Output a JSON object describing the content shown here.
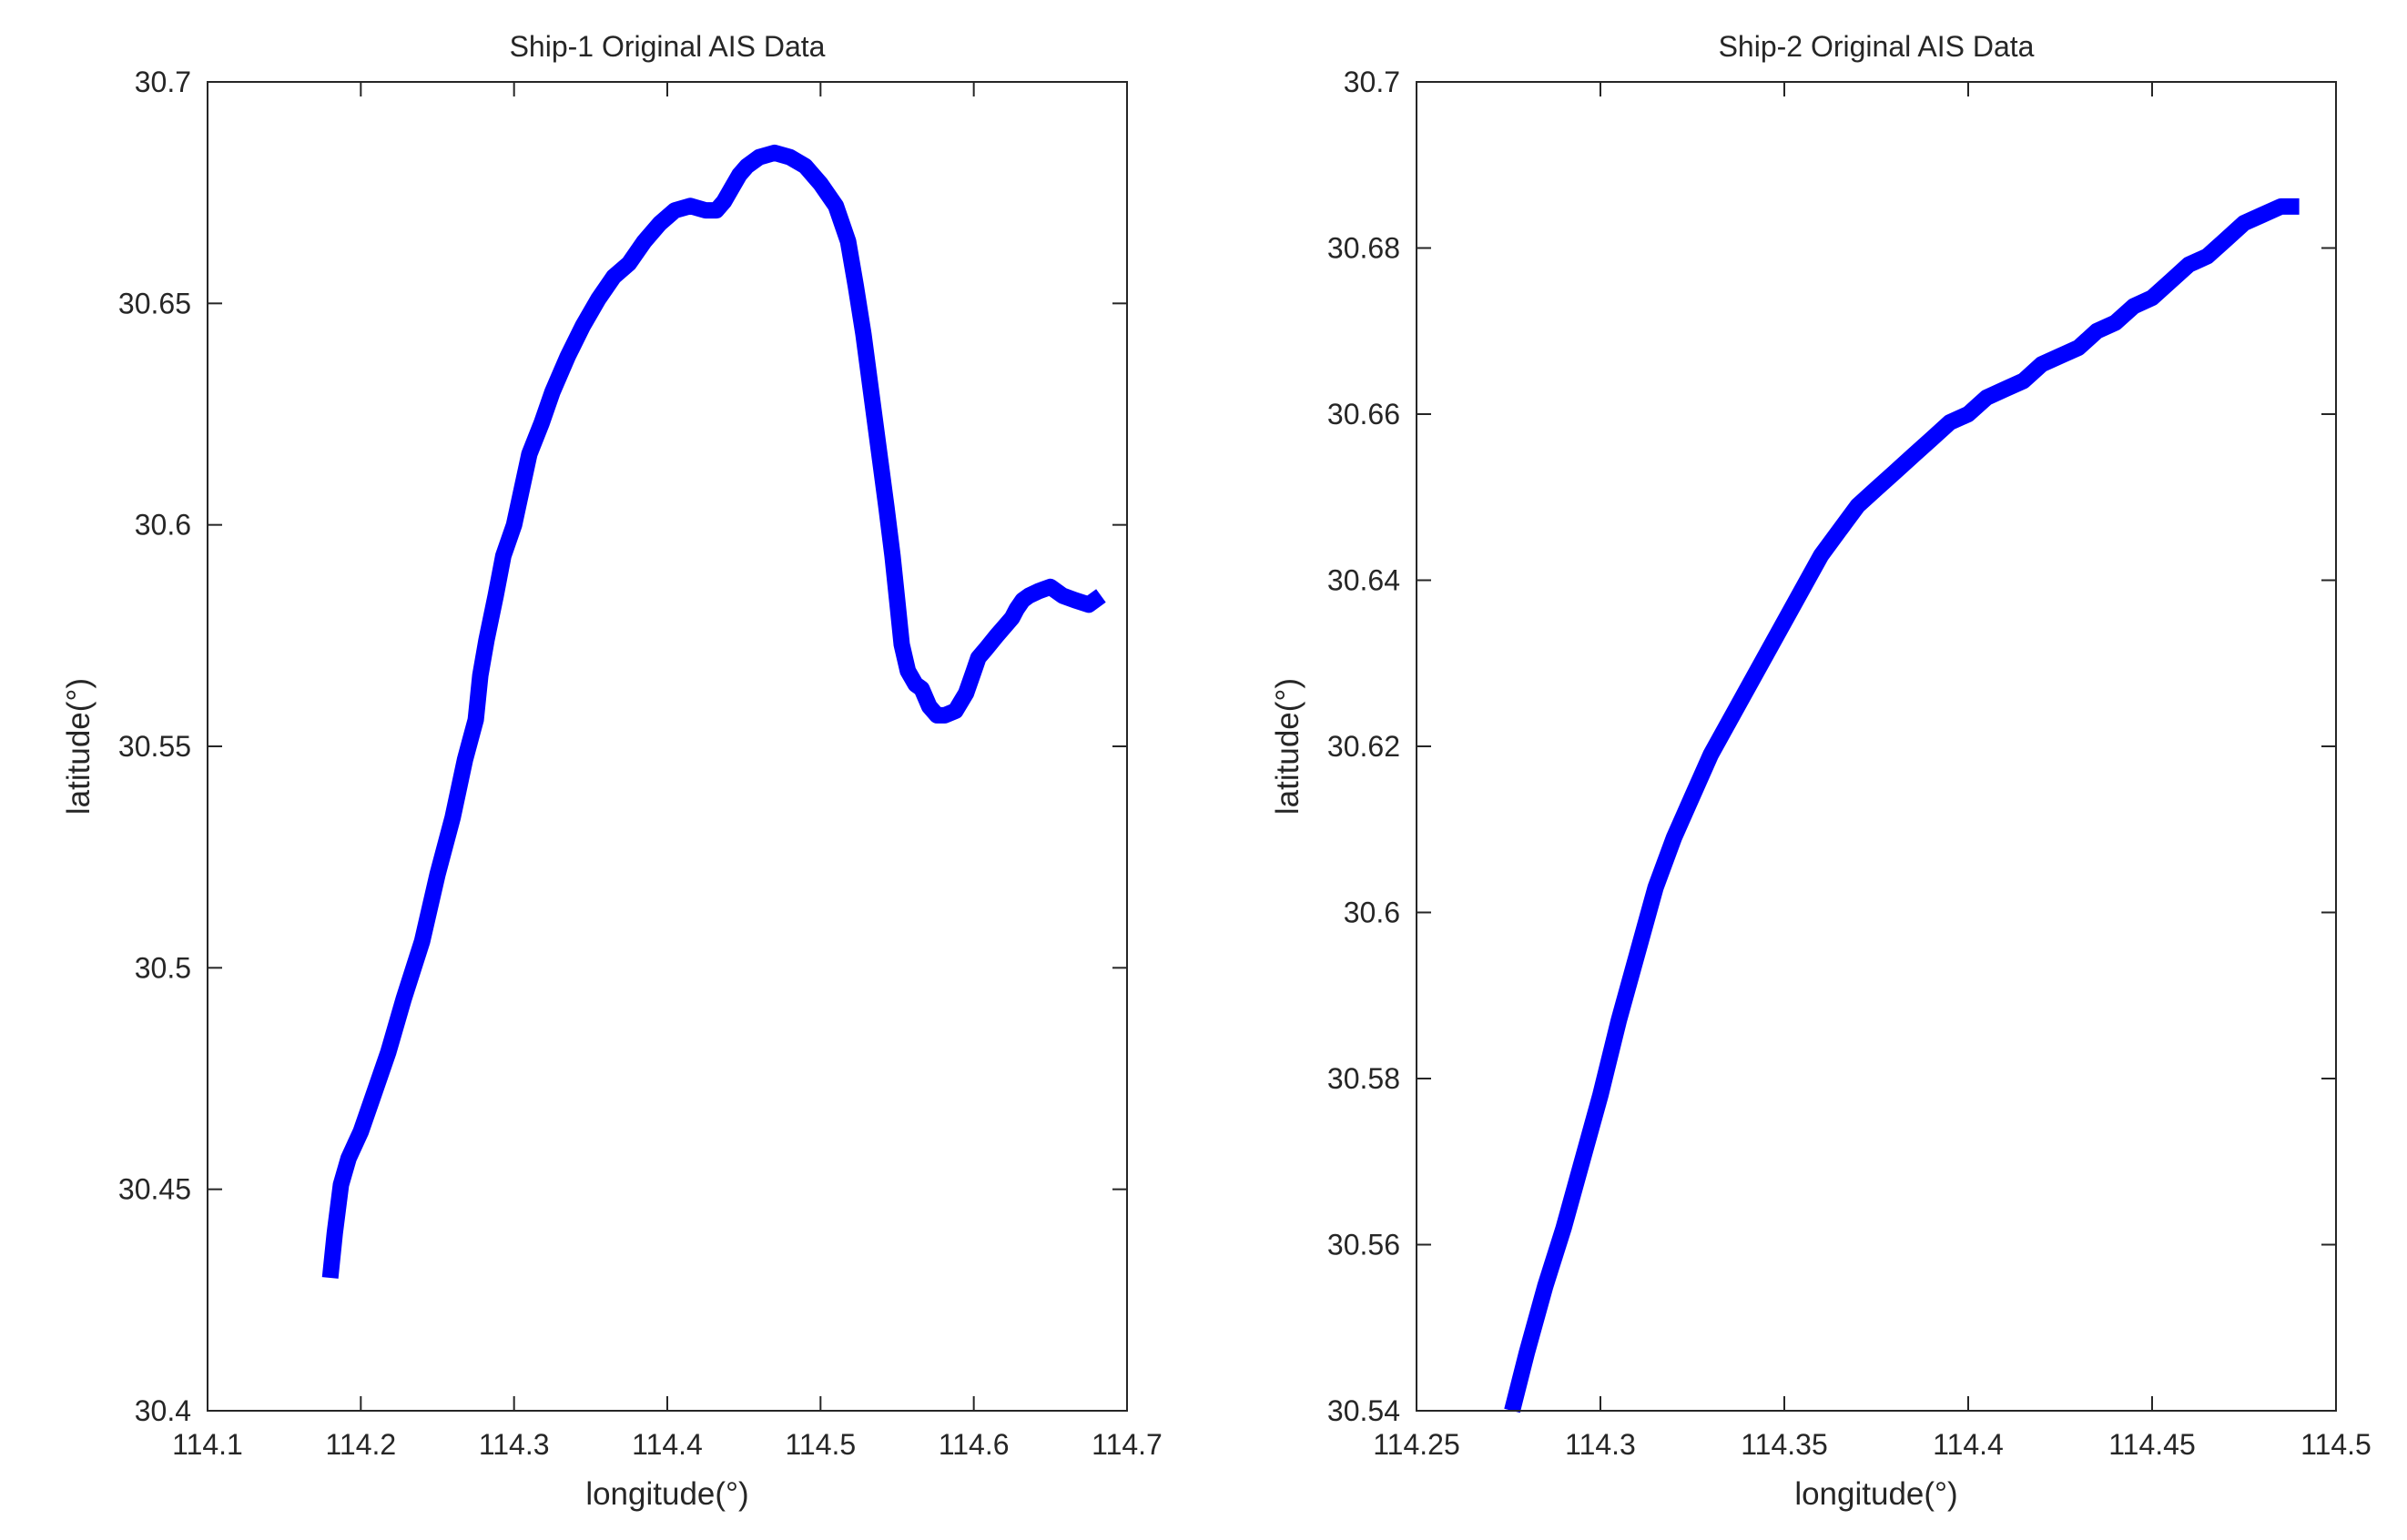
{
  "chart_data": [
    {
      "type": "line",
      "title": "Ship-1 Original AIS Data",
      "xlabel": "longitude(°)",
      "ylabel": "latitude(°)",
      "xlim": [
        114.1,
        114.7
      ],
      "ylim": [
        30.4,
        30.7
      ],
      "xticks": [
        "114.1",
        "114.2",
        "114.3",
        "114.4",
        "114.5",
        "114.6",
        "114.7"
      ],
      "yticks": [
        "30.4",
        "30.45",
        "30.5",
        "30.55",
        "30.6",
        "30.65",
        "30.7"
      ],
      "grid": false,
      "series_color": "#0000FF",
      "x": [
        114.18,
        114.183,
        114.187,
        114.192,
        114.2,
        114.208,
        114.218,
        114.228,
        114.24,
        114.25,
        114.26,
        114.268,
        114.275,
        114.278,
        114.282,
        114.288,
        114.293,
        114.3,
        114.305,
        114.31,
        114.318,
        114.325,
        114.335,
        114.345,
        114.355,
        114.365,
        114.375,
        114.385,
        114.395,
        114.405,
        114.415,
        114.425,
        114.432,
        114.437,
        114.442,
        114.447,
        114.452,
        114.46,
        114.47,
        114.48,
        114.49,
        114.5,
        114.51,
        114.518,
        114.523,
        114.528,
        114.533,
        114.538,
        114.543,
        114.547,
        114.55,
        114.553,
        114.557,
        114.562,
        114.566,
        114.571,
        114.576,
        114.581,
        114.588,
        114.595,
        114.6,
        114.603,
        114.608,
        114.615,
        114.62,
        114.625,
        114.628,
        114.632,
        114.636,
        114.642,
        114.65,
        114.658,
        114.666,
        114.675,
        114.683
      ],
      "y": [
        30.43,
        30.44,
        30.451,
        30.457,
        30.463,
        30.471,
        30.481,
        30.493,
        30.506,
        30.521,
        30.534,
        30.547,
        30.556,
        30.566,
        30.574,
        30.584,
        30.593,
        30.6,
        30.608,
        30.616,
        30.623,
        30.63,
        30.638,
        30.645,
        30.651,
        30.656,
        30.659,
        30.664,
        30.668,
        30.671,
        30.672,
        30.671,
        30.671,
        30.673,
        30.676,
        30.679,
        30.681,
        30.683,
        30.684,
        30.683,
        30.681,
        30.677,
        30.672,
        30.664,
        30.654,
        30.643,
        30.63,
        30.617,
        30.604,
        30.593,
        30.583,
        30.573,
        30.567,
        30.564,
        30.563,
        30.559,
        30.557,
        30.557,
        30.558,
        30.562,
        30.567,
        30.57,
        30.572,
        30.575,
        30.577,
        30.579,
        30.581,
        30.583,
        30.584,
        30.585,
        30.586,
        30.584,
        30.583,
        30.582,
        30.584
      ]
    },
    {
      "type": "line",
      "title": "Ship-2 Original AIS Data",
      "xlabel": "longitude(°)",
      "ylabel": "latitude(°)",
      "xlim": [
        114.25,
        114.5
      ],
      "ylim": [
        30.54,
        30.7
      ],
      "xticks": [
        "114.25",
        "114.3",
        "114.35",
        "114.4",
        "114.45",
        "114.5"
      ],
      "yticks": [
        "30.54",
        "30.56",
        "30.58",
        "30.6",
        "30.62",
        "30.64",
        "30.66",
        "30.68",
        "30.7"
      ],
      "grid": false,
      "series_color": "#0000FF",
      "x": [
        114.276,
        114.28,
        114.285,
        114.29,
        114.295,
        114.3,
        114.305,
        114.31,
        114.315,
        114.32,
        114.325,
        114.33,
        114.335,
        114.34,
        114.345,
        114.35,
        114.355,
        114.36,
        114.365,
        114.37,
        114.375,
        114.38,
        114.385,
        114.39,
        114.395,
        114.4,
        114.405,
        114.41,
        114.415,
        114.42,
        114.425,
        114.43,
        114.435,
        114.44,
        114.445,
        114.45,
        114.455,
        114.46,
        114.465,
        114.47,
        114.475,
        114.48,
        114.485,
        114.49
      ],
      "y": [
        30.54,
        30.547,
        30.555,
        30.562,
        30.57,
        30.578,
        30.587,
        30.595,
        30.603,
        30.609,
        30.614,
        30.619,
        30.623,
        30.627,
        30.631,
        30.635,
        30.639,
        30.643,
        30.646,
        30.649,
        30.651,
        30.653,
        30.655,
        30.657,
        30.659,
        30.66,
        30.662,
        30.663,
        30.664,
        30.666,
        30.667,
        30.668,
        30.67,
        30.671,
        30.673,
        30.674,
        30.676,
        30.678,
        30.679,
        30.681,
        30.683,
        30.684,
        30.685,
        30.685
      ]
    }
  ]
}
